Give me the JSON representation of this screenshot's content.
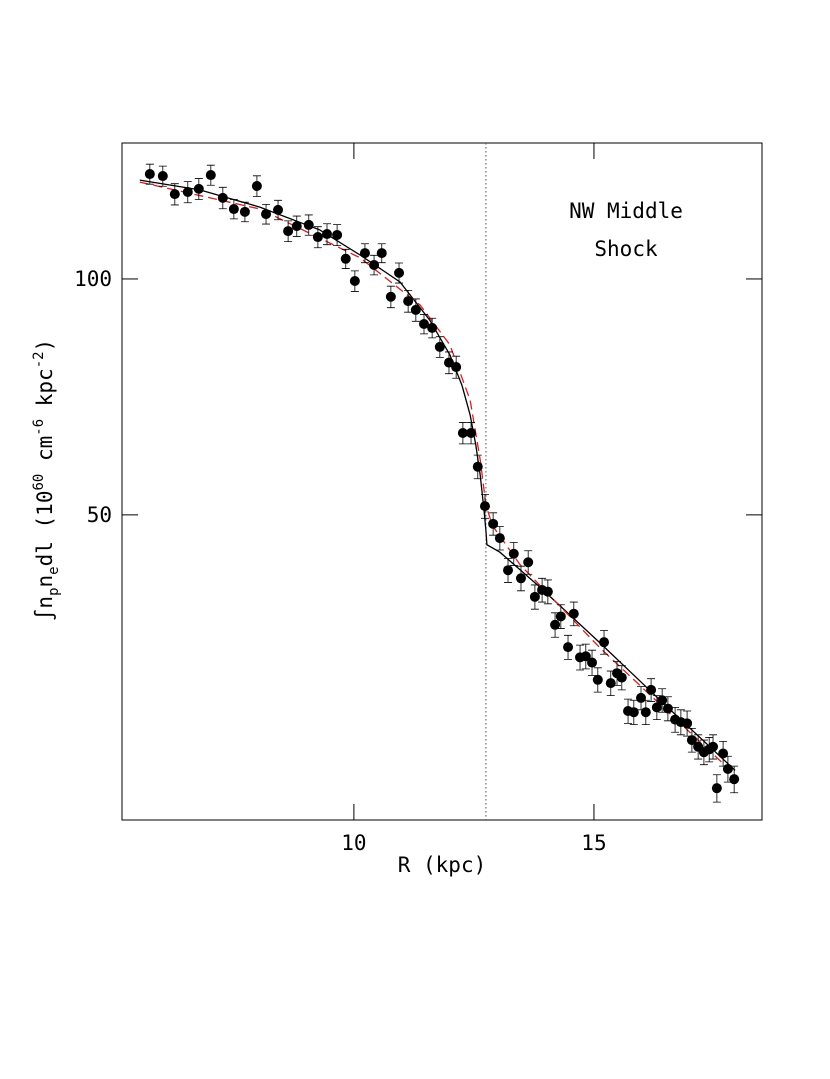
{
  "chart_data": {
    "type": "scatter",
    "xlabel": "R (kpc)",
    "ylabel_parts": [
      "∫n",
      "p",
      "n",
      "e",
      "dl (10",
      "60",
      " cm",
      "-6",
      " kpc",
      "-2",
      ")"
    ],
    "annotation": [
      "NW Middle",
      "Shock"
    ],
    "xlim": [
      5.17,
      18.5
    ],
    "ylim": [
      20.4,
      149.1
    ],
    "xticks": [
      10,
      15
    ],
    "yticks": [
      50,
      100
    ],
    "log_y": true,
    "vline": 12.75,
    "points": {
      "color": "#000000",
      "x": [
        5.75,
        6.02,
        6.27,
        6.54,
        6.77,
        7.02,
        7.27,
        7.5,
        7.73,
        7.98,
        8.17,
        8.42,
        8.63,
        8.81,
        9.06,
        9.25,
        9.44,
        9.65,
        9.83,
        10.02,
        10.23,
        10.42,
        10.58,
        10.77,
        10.94,
        11.13,
        11.29,
        11.46,
        11.63,
        11.79,
        11.98,
        12.13,
        12.27,
        12.44,
        12.58,
        12.73,
        12.9,
        13.04,
        13.21,
        13.33,
        13.48,
        13.63,
        13.77,
        13.92,
        14.04,
        14.19,
        14.31,
        14.46,
        14.58,
        14.71,
        14.83,
        14.96,
        15.08,
        15.21,
        15.35,
        15.48,
        15.58,
        15.71,
        15.83,
        15.98,
        16.08,
        16.19,
        16.31,
        16.42,
        16.54,
        16.69,
        16.81,
        16.94,
        17.04,
        17.17,
        17.29,
        17.4,
        17.48,
        17.56,
        17.69,
        17.79,
        17.92
      ],
      "values": [
        136.1,
        135.3,
        128.3,
        129.1,
        130.3,
        135.7,
        126.9,
        122.8,
        121.8,
        131.4,
        121.0,
        122.5,
        115.1,
        116.8,
        117.2,
        113.1,
        114.1,
        113.8,
        106.1,
        99.4,
        107.9,
        104.2,
        107.9,
        94.9,
        101.8,
        93.7,
        91.3,
        87.6,
        86.6,
        81.9,
        78.2,
        77.2,
        63.6,
        63.6,
        57.6,
        51.3,
        48.7,
        46.7,
        42.5,
        44.6,
        41.5,
        43.5,
        39.3,
        40.1,
        39.9,
        36.2,
        37.1,
        33.9,
        37.4,
        32.9,
        33.0,
        32.4,
        30.8,
        34.4,
        30.5,
        31.4,
        31.0,
        28.1,
        28.0,
        29.2,
        28.0,
        29.9,
        28.4,
        29.0,
        28.3,
        27.4,
        27.2,
        27.1,
        25.8,
        25.3,
        24.9,
        25.1,
        25.3,
        22.4,
        24.8,
        23.7,
        23.0
      ],
      "errors": [
        4,
        4,
        4,
        4,
        4,
        4,
        4,
        3.5,
        3.5,
        4,
        3.5,
        3.5,
        3.5,
        3.5,
        3.5,
        3.5,
        3.5,
        3.5,
        3,
        3,
        3,
        3,
        3,
        3,
        3,
        3,
        3,
        2.5,
        2.5,
        2.5,
        2.5,
        2.5,
        2,
        2,
        2,
        1.8,
        1.6,
        1.6,
        1.5,
        1.5,
        1.5,
        1.5,
        1.4,
        1.4,
        1.4,
        1.3,
        1.3,
        1.2,
        1.3,
        1.2,
        1.2,
        1.2,
        1.1,
        1.2,
        1.1,
        1.1,
        1.1,
        1,
        1,
        1,
        1,
        1,
        1,
        1,
        1,
        1,
        1,
        1,
        0.9,
        0.9,
        0.9,
        0.9,
        0.9,
        0.9,
        0.9,
        0.9,
        0.9
      ]
    },
    "models": [
      {
        "color": "#000000",
        "dash": false,
        "x": [
          5.54,
          6.79,
          8.04,
          9.29,
          10.13,
          10.96,
          11.58,
          12.0,
          12.25,
          12.42,
          12.54,
          12.63,
          12.71,
          12.75,
          12.77,
          13.04,
          13.88,
          15.13,
          16.38,
          17.94
        ],
        "values": [
          133.7,
          129.9,
          123.5,
          115.5,
          107.3,
          99.1,
          88.6,
          80.0,
          73.2,
          67.1,
          61.4,
          56.2,
          50.7,
          47.8,
          45.8,
          44.8,
          40.4,
          34.3,
          29.0,
          23.6
        ]
      },
      {
        "color": "#d62020",
        "dash": true,
        "x": [
          5.54,
          8.04,
          10.13,
          11.38,
          12.0,
          12.42,
          12.63,
          12.75,
          12.88,
          13.46,
          15.13,
          17.94
        ],
        "values": [
          132.9,
          122.8,
          106.4,
          92.6,
          82.4,
          70.1,
          58.8,
          51.5,
          48.5,
          43.2,
          33.8,
          23.3
        ]
      }
    ]
  }
}
